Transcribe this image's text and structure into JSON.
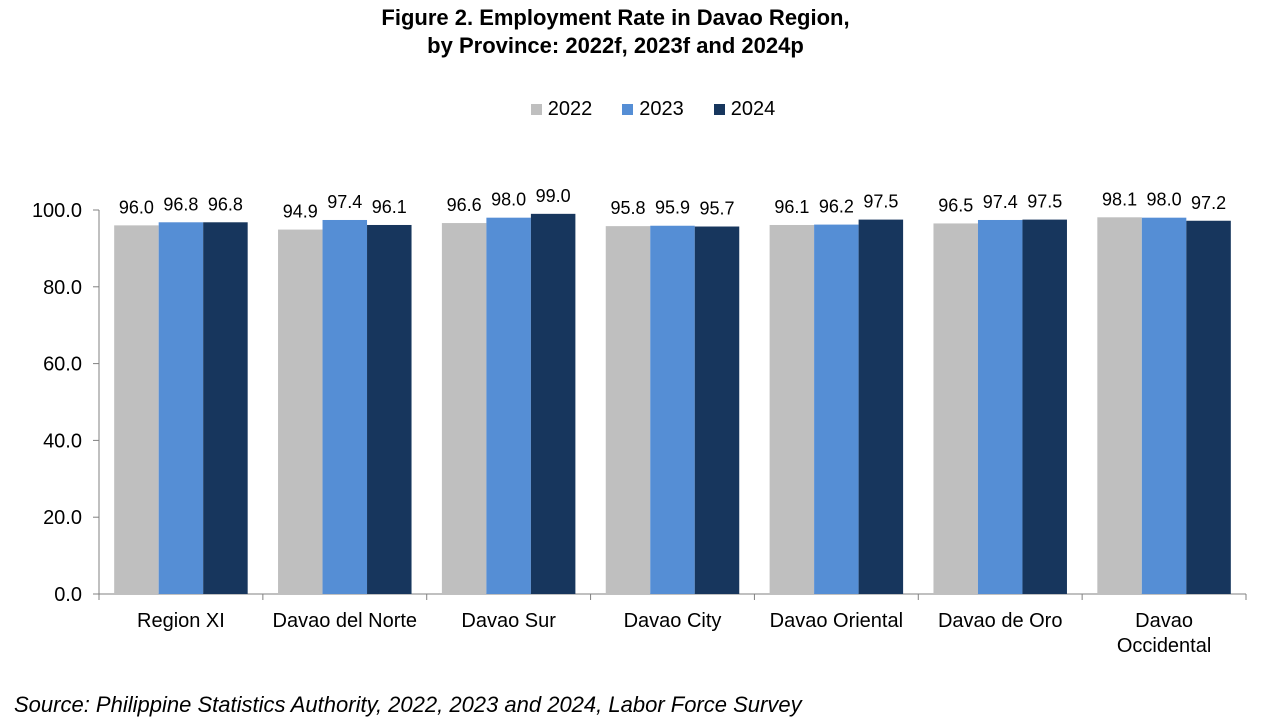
{
  "chart_data": {
    "type": "bar",
    "title_lines": [
      "Figure 2. Employment Rate in Davao Region,",
      "by Province: 2022f, 2023f and 2024p"
    ],
    "categories": [
      [
        "Region XI"
      ],
      [
        "Davao del Norte"
      ],
      [
        "Davao Sur"
      ],
      [
        "Davao City"
      ],
      [
        "Davao Oriental"
      ],
      [
        "Davao de Oro"
      ],
      [
        "Davao",
        "Occidental"
      ]
    ],
    "series": [
      {
        "name": "2022",
        "color": "#bfbfbf",
        "values": [
          96.0,
          94.9,
          96.6,
          95.8,
          96.1,
          96.5,
          98.1
        ]
      },
      {
        "name": "2023",
        "color": "#558ed5",
        "values": [
          96.8,
          97.4,
          98.0,
          95.9,
          96.2,
          97.4,
          98.0
        ]
      },
      {
        "name": "2024",
        "color": "#17365d",
        "values": [
          96.8,
          96.1,
          99.0,
          95.7,
          97.5,
          97.5,
          97.2
        ]
      }
    ],
    "ylim": [
      0,
      100
    ],
    "yticks": [
      0,
      20,
      40,
      60,
      80,
      100
    ],
    "tick_decimals": 1,
    "label_decimals": 1,
    "xlabel": "",
    "ylabel": "",
    "legend_position": "top-center",
    "grid": false
  },
  "source": "Source: Philippine Statistics Authority, 2022, 2023 and 2024, Labor Force Survey"
}
